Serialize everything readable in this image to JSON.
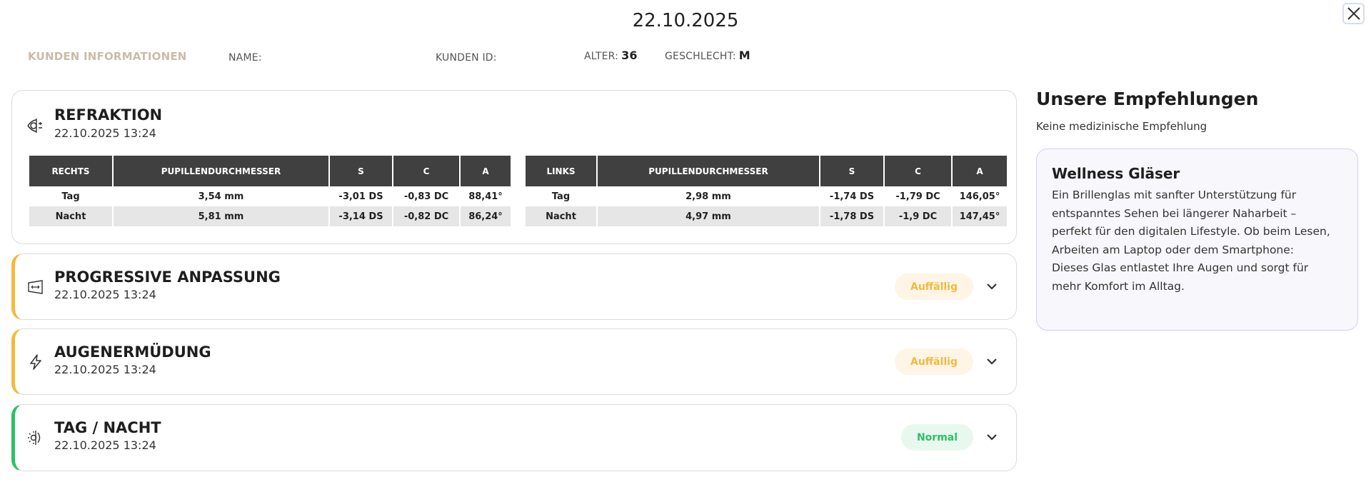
{
  "header": {
    "date": "22.10.2025",
    "close_icon": "close-icon"
  },
  "customer": {
    "section_label": "KUNDEN INFORMATIONEN",
    "name_label": "NAME:",
    "name_value": "",
    "id_label": "KUNDEN ID:",
    "id_value": "",
    "age_label": "ALTER:",
    "age_value": "36",
    "gender_label": "GESCHLECHT:",
    "gender_value": "M"
  },
  "refraktion": {
    "title": "REFRAKTION",
    "date": "22.10.2025 13:24",
    "icon": "eye-refraction-icon",
    "right": {
      "headers": [
        "RECHTS",
        "PUPILLENDURCHMESSER",
        "S",
        "C",
        "A"
      ],
      "rows": [
        [
          "Tag",
          "3,54 mm",
          "-3,01 DS",
          "-0,83 DC",
          "88,41°"
        ],
        [
          "Nacht",
          "5,81 mm",
          "-3,14 DS",
          "-0,82 DC",
          "86,24°"
        ]
      ]
    },
    "left": {
      "headers": [
        "LINKS",
        "PUPILLENDURCHMESSER",
        "S",
        "C",
        "A"
      ],
      "rows": [
        [
          "Tag",
          "2,98 mm",
          "-1,74 DS",
          "-1,79 DC",
          "146,05°"
        ],
        [
          "Nacht",
          "4,97 mm",
          "-1,78 DS",
          "-1,9 DC",
          "147,45°"
        ]
      ]
    }
  },
  "sections": [
    {
      "title": "PROGRESSIVE ANPASSUNG",
      "date": "22.10.2025 13:24",
      "status": "Auffällig",
      "icon": "lens-width-icon",
      "status_color": "#f4b93c"
    },
    {
      "title": "AUGENERMÜDUNG",
      "date": "22.10.2025 13:24",
      "status": "Auffällig",
      "icon": "lightning-icon",
      "status_color": "#f4b93c"
    },
    {
      "title": "TAG / NACHT",
      "date": "22.10.2025 13:24",
      "status": "Normal",
      "icon": "day-night-icon",
      "status_color": "#2cc065"
    }
  ],
  "recommendations": {
    "title": "Unsere Empfehlungen",
    "subtitle": "Keine medizinische Empfehlung",
    "card": {
      "title": "Wellness Gläser",
      "text": "Ein Brillenglas mit sanfter Unterstützung für entspanntes Sehen bei längerer Naharbeit – perfekt für den digitalen Lifestyle. Ob beim Lesen, Arbeiten am Laptop oder dem Smartphone: Dieses Glas entlastet Ihre Augen und sorgt für mehr Komfort im Alltag."
    }
  }
}
